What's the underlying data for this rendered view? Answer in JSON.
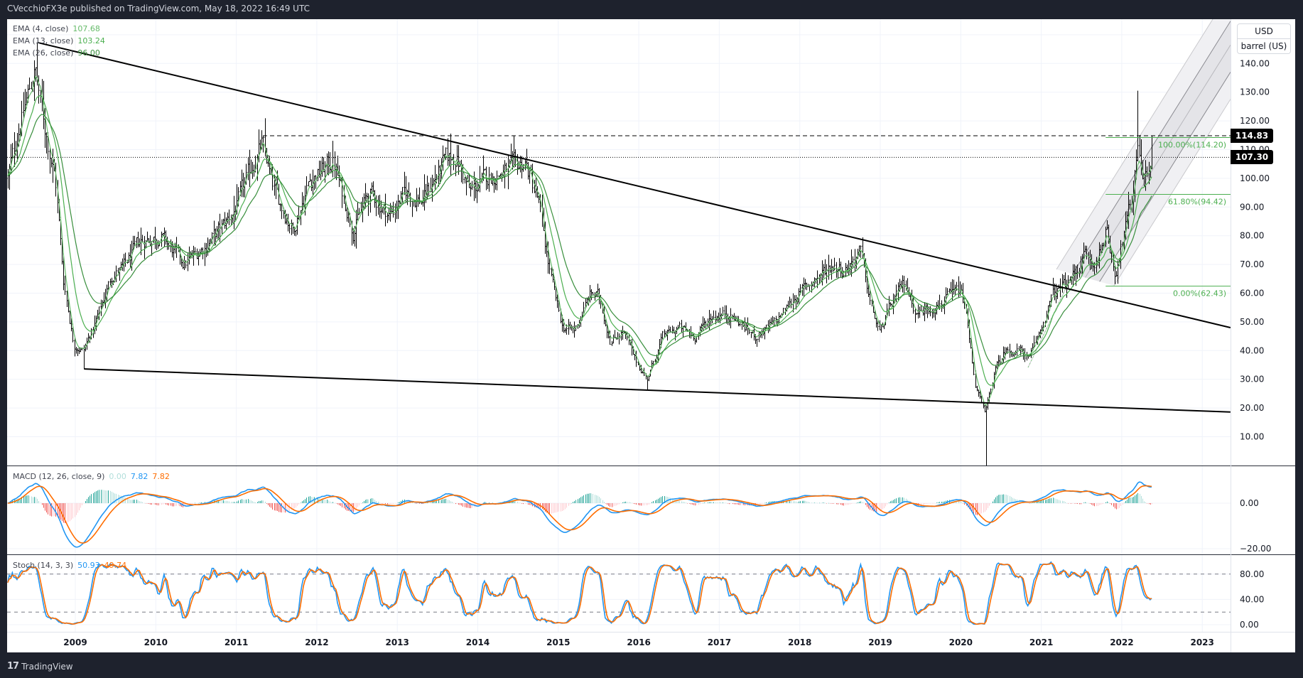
{
  "header": {
    "published": "CVecchioFX3e published on TradingView.com, May 18, 2022 16:49 UTC"
  },
  "legend": {
    "ema": [
      {
        "label": "EMA (4, close)",
        "value": "107.68",
        "color": "#66bb6a"
      },
      {
        "label": "EMA (13, close)",
        "value": "103.24",
        "color": "#4caf50"
      },
      {
        "label": "EMA (26, close)",
        "value": "96.00",
        "color": "#388e3c"
      }
    ],
    "macd": {
      "label": "MACD (12, 26, close, 9)",
      "hist": "0.00",
      "macd": "7.82",
      "signal": "7.82"
    },
    "stoch": {
      "label": "Stoch (14, 3, 3)",
      "k": "50.93",
      "d": "49.74"
    }
  },
  "price_scale": {
    "currency": "USD",
    "unit": "barrel (US)",
    "ticks": [
      "140.00",
      "130.00",
      "120.00",
      "110.00",
      "100.00",
      "90.00",
      "80.00",
      "70.00",
      "60.00",
      "50.00",
      "40.00",
      "30.00",
      "20.00",
      "10.00"
    ]
  },
  "price_labels": {
    "resistance": "114.83",
    "last": "107.30"
  },
  "macd_scale": [
    "0.00",
    "−20.00"
  ],
  "stoch_scale": [
    "80.00",
    "40.00",
    "0.00"
  ],
  "time_axis": [
    "2009",
    "2010",
    "2011",
    "2012",
    "2013",
    "2014",
    "2015",
    "2016",
    "2017",
    "2018",
    "2019",
    "2020",
    "2021",
    "2022",
    "2023"
  ],
  "fib": [
    {
      "label": "100.00%(114.20)",
      "price": 114.2
    },
    {
      "label": "61.80%(94.42)",
      "price": 94.42
    },
    {
      "label": "0.00%(62.43)",
      "price": 62.43
    }
  ],
  "footer": {
    "logo": "TradingView"
  },
  "colors": {
    "bars": "#000000",
    "macd": "#2196f3",
    "signal": "#ff6d00",
    "hist_up": "#26a69a",
    "hist_up_light": "#b2dfdb",
    "hist_dn": "#ef5350",
    "hist_dn_light": "#ffcdd2",
    "stoch_k": "#2196f3",
    "stoch_d": "#ff6d00",
    "fib": "#4caf50",
    "hist_zero": "#b2dfdb"
  },
  "chart_data": {
    "type": "ohlc",
    "timeframe": "weekly",
    "series_name": "",
    "approx_close_anchors": [
      [
        2008.16,
        100
      ],
      [
        2008.3,
        118
      ],
      [
        2008.5,
        138
      ],
      [
        2008.62,
        118
      ],
      [
        2008.75,
        100
      ],
      [
        2008.85,
        65
      ],
      [
        2008.98,
        42
      ],
      [
        2009.1,
        40
      ],
      [
        2009.25,
        50
      ],
      [
        2009.45,
        66
      ],
      [
        2009.6,
        69
      ],
      [
        2009.8,
        78
      ],
      [
        2010.05,
        80
      ],
      [
        2010.35,
        70
      ],
      [
        2010.6,
        76
      ],
      [
        2010.85,
        84
      ],
      [
        2011.0,
        90
      ],
      [
        2011.2,
        105
      ],
      [
        2011.32,
        112
      ],
      [
        2011.45,
        97
      ],
      [
        2011.7,
        82
      ],
      [
        2011.9,
        99
      ],
      [
        2012.2,
        106
      ],
      [
        2012.45,
        82
      ],
      [
        2012.65,
        95
      ],
      [
        2012.9,
        87
      ],
      [
        2013.1,
        95
      ],
      [
        2013.3,
        92
      ],
      [
        2013.6,
        106
      ],
      [
        2013.72,
        108
      ],
      [
        2013.9,
        95
      ],
      [
        2014.1,
        100
      ],
      [
        2014.5,
        104
      ],
      [
        2014.58,
        106
      ],
      [
        2014.75,
        92
      ],
      [
        2014.9,
        66
      ],
      [
        2015.05,
        48
      ],
      [
        2015.2,
        47
      ],
      [
        2015.4,
        60
      ],
      [
        2015.5,
        59
      ],
      [
        2015.65,
        43
      ],
      [
        2015.8,
        47
      ],
      [
        2015.95,
        37
      ],
      [
        2016.1,
        30
      ],
      [
        2016.3,
        45
      ],
      [
        2016.5,
        48
      ],
      [
        2016.7,
        45
      ],
      [
        2016.9,
        52
      ],
      [
        2017.1,
        53
      ],
      [
        2017.45,
        45
      ],
      [
        2017.7,
        50
      ],
      [
        2017.95,
        59
      ],
      [
        2018.1,
        63
      ],
      [
        2018.4,
        70
      ],
      [
        2018.55,
        68
      ],
      [
        2018.75,
        75
      ],
      [
        2018.88,
        56
      ],
      [
        2018.99,
        46
      ],
      [
        2019.1,
        54
      ],
      [
        2019.3,
        64
      ],
      [
        2019.45,
        53
      ],
      [
        2019.7,
        56
      ],
      [
        2019.99,
        61
      ],
      [
        2020.05,
        55
      ],
      [
        2020.18,
        28
      ],
      [
        2020.3,
        18
      ],
      [
        2020.42,
        33
      ],
      [
        2020.55,
        40
      ],
      [
        2020.75,
        40
      ],
      [
        2020.85,
        37
      ],
      [
        2021.0,
        48
      ],
      [
        2021.15,
        60
      ],
      [
        2021.35,
        64
      ],
      [
        2021.55,
        74
      ],
      [
        2021.65,
        68
      ],
      [
        2021.8,
        82
      ],
      [
        2021.92,
        67
      ],
      [
        2022.0,
        78
      ],
      [
        2022.12,
        92
      ],
      [
        2022.19,
        112
      ],
      [
        2022.28,
        100
      ],
      [
        2022.38,
        107.3
      ]
    ],
    "notable_extremes": {
      "high_2008": 147.3,
      "high_2011": 114.83,
      "low_2009": 33.5,
      "low_2016": 26.1,
      "low_2020": -40,
      "high_2022": 130.5
    },
    "last_price": 107.3,
    "resistance_level": 114.83,
    "trendlines": [
      {
        "from": [
          2008.53,
          147.3
        ],
        "to": [
          2023.35,
          48
        ]
      },
      {
        "from": [
          2009.11,
          33.6
        ],
        "to": [
          2023.35,
          18.6
        ]
      }
    ],
    "fib_retracement": {
      "high": 114.2,
      "mid_618": 94.42,
      "low": 62.43
    },
    "indicators": {
      "ema_periods": [
        4,
        13,
        26
      ],
      "macd": [
        12,
        26,
        9
      ],
      "stoch": [
        14,
        3,
        3
      ],
      "stoch_levels": [
        80,
        20
      ]
    },
    "ylim": [
      0,
      150
    ],
    "macd_ylim": [
      -22,
      17
    ],
    "stoch_ylim": [
      0,
      100
    ],
    "xlabel": "",
    "ylabel": "",
    "grid": true
  }
}
